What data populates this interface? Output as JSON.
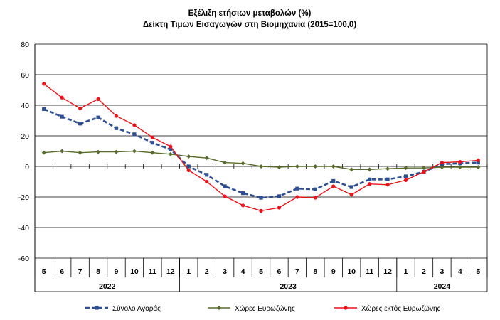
{
  "chart_data": {
    "type": "line",
    "title": "Εξέλιξη ετήσιων μεταβολών (%)",
    "subtitle": "Δείκτη Τιμών Εισαγωγών στη Βιομηχανία (2015=100,0)",
    "ylim": [
      -60,
      80
    ],
    "yticks": [
      "80",
      "60",
      "40",
      "20",
      "0",
      "-20",
      "-40",
      "-60"
    ],
    "ytick_values": [
      80,
      60,
      40,
      20,
      0,
      -20,
      -40,
      -60
    ],
    "grid": true,
    "legend_position": "bottom",
    "categories": [
      "5",
      "6",
      "7",
      "8",
      "9",
      "10",
      "11",
      "12",
      "1",
      "2",
      "3",
      "4",
      "5",
      "6",
      "7",
      "8",
      "9",
      "10",
      "11",
      "12",
      "1",
      "2",
      "3",
      "4",
      "5"
    ],
    "years": [
      {
        "label": "2022",
        "start": 0,
        "end": 7
      },
      {
        "label": "2023",
        "start": 8,
        "end": 19
      },
      {
        "label": "2024",
        "start": 20,
        "end": 24
      }
    ],
    "series": [
      {
        "name": "Σύνολο Αγοράς",
        "color": "#2f4f8f",
        "style": "dashed-square",
        "values": [
          37.5,
          32.5,
          28,
          32,
          25,
          21,
          15.5,
          11,
          0,
          -5.5,
          -13,
          -17.5,
          -20.5,
          -19.5,
          -14.5,
          -15,
          -9.5,
          -13.5,
          -8.5,
          -8.5,
          -6.5,
          -3.5,
          1.5,
          2,
          2.5
        ]
      },
      {
        "name": "Χώρες Ευρωζώνης",
        "color": "#5a6b2f",
        "style": "solid-diamond",
        "values": [
          9,
          10,
          9,
          9.5,
          9.5,
          10,
          9,
          8,
          6.5,
          5.5,
          2.5,
          2,
          0,
          -0.5,
          0,
          0,
          0,
          -2,
          -2,
          -1.5,
          -1,
          -1,
          -0.5,
          -0.5,
          -0.5
        ]
      },
      {
        "name": "Χώρες εκτός Ευρωζώνης",
        "color": "#e8141b",
        "style": "solid-circle",
        "values": [
          54,
          45,
          38,
          44,
          33,
          27,
          19,
          13,
          -2.5,
          -10,
          -19.5,
          -25.5,
          -29,
          -27,
          -20,
          -20.5,
          -13,
          -18.5,
          -11.5,
          -12,
          -9,
          -3.5,
          2.5,
          3,
          4
        ]
      }
    ]
  }
}
